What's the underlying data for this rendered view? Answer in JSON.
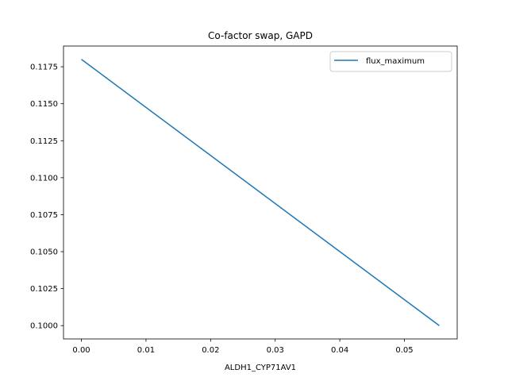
{
  "chart_data": {
    "type": "line",
    "title": "Co-factor swap, GAPD",
    "xlabel": "ALDH1_CYP71AV1",
    "ylabel": "",
    "xlim": [
      -0.00277,
      0.05817
    ],
    "ylim": [
      0.0991,
      0.1189
    ],
    "xticks": [
      {
        "value": 0.0,
        "label": "0.00"
      },
      {
        "value": 0.01,
        "label": "0.01"
      },
      {
        "value": 0.02,
        "label": "0.02"
      },
      {
        "value": 0.03,
        "label": "0.03"
      },
      {
        "value": 0.04,
        "label": "0.04"
      },
      {
        "value": 0.05,
        "label": "0.05"
      }
    ],
    "yticks": [
      {
        "value": 0.1,
        "label": "0.1000"
      },
      {
        "value": 0.1025,
        "label": "0.1025"
      },
      {
        "value": 0.105,
        "label": "0.1050"
      },
      {
        "value": 0.1075,
        "label": "0.1075"
      },
      {
        "value": 0.11,
        "label": "0.1100"
      },
      {
        "value": 0.1125,
        "label": "0.1125"
      },
      {
        "value": 0.115,
        "label": "0.1150"
      },
      {
        "value": 0.1175,
        "label": "0.1175"
      }
    ],
    "grid": false,
    "legend_position": "top-right",
    "series": [
      {
        "name": "flux_maximum",
        "color": "#1f77b4",
        "x": [
          0.0,
          0.0554
        ],
        "y": [
          0.118,
          0.1
        ]
      }
    ]
  }
}
